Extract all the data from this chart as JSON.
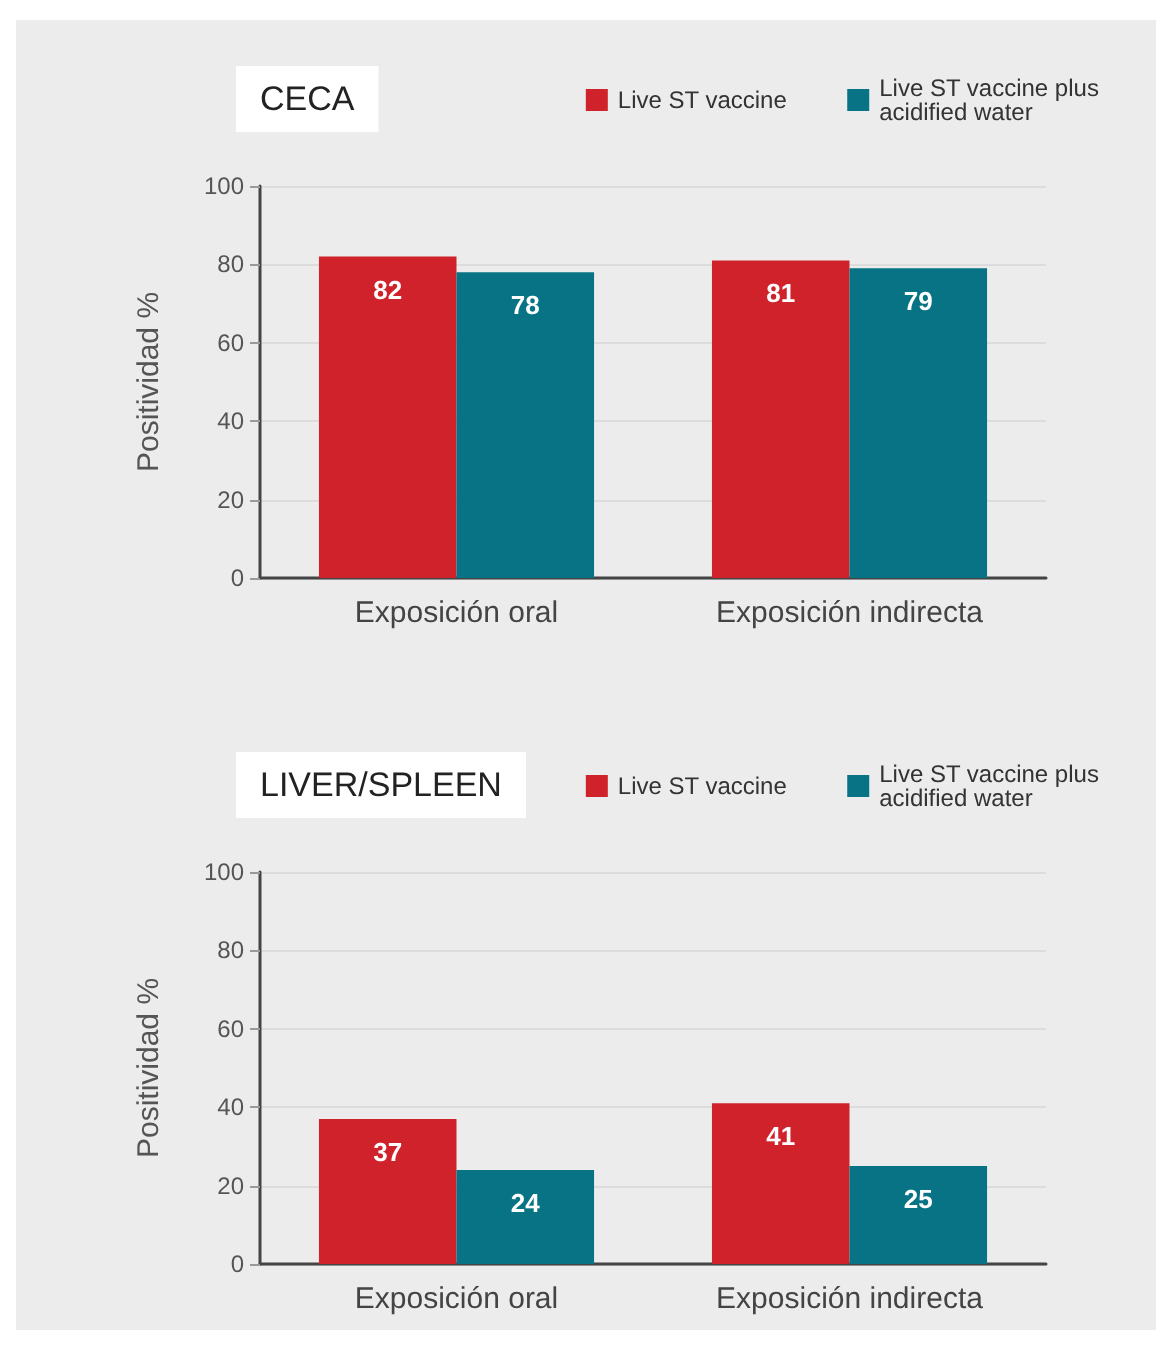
{
  "chart_data": [
    {
      "type": "bar",
      "title": "CECA",
      "ylabel": "Positividad %",
      "categories": [
        "Exposición oral",
        "Exposición indirecta"
      ],
      "series": [
        {
          "name": "Live ST vaccine",
          "color": "#d0222b",
          "values": [
            82,
            81
          ]
        },
        {
          "name": "Live ST vaccine plus acidified water",
          "color": "#077384",
          "values": [
            78,
            79
          ]
        }
      ],
      "ylim": [
        0,
        100
      ],
      "yticks": [
        0,
        20,
        40,
        60,
        80,
        100
      ],
      "grid": "y",
      "legend": "top right",
      "data_labels": true
    },
    {
      "type": "bar",
      "title": "LIVER/SPLEEN",
      "ylabel": "Positividad %",
      "categories": [
        "Exposición oral",
        "Exposición indirecta"
      ],
      "series": [
        {
          "name": "Live ST vaccine",
          "color": "#d0222b",
          "values": [
            37,
            41
          ]
        },
        {
          "name": "Live ST vaccine plus acidified water",
          "color": "#077384",
          "values": [
            24,
            25
          ]
        }
      ],
      "ylim": [
        0,
        100
      ],
      "yticks": [
        0,
        20,
        40,
        60,
        80,
        100
      ],
      "grid": "y",
      "legend": "top right",
      "data_labels": true
    }
  ]
}
